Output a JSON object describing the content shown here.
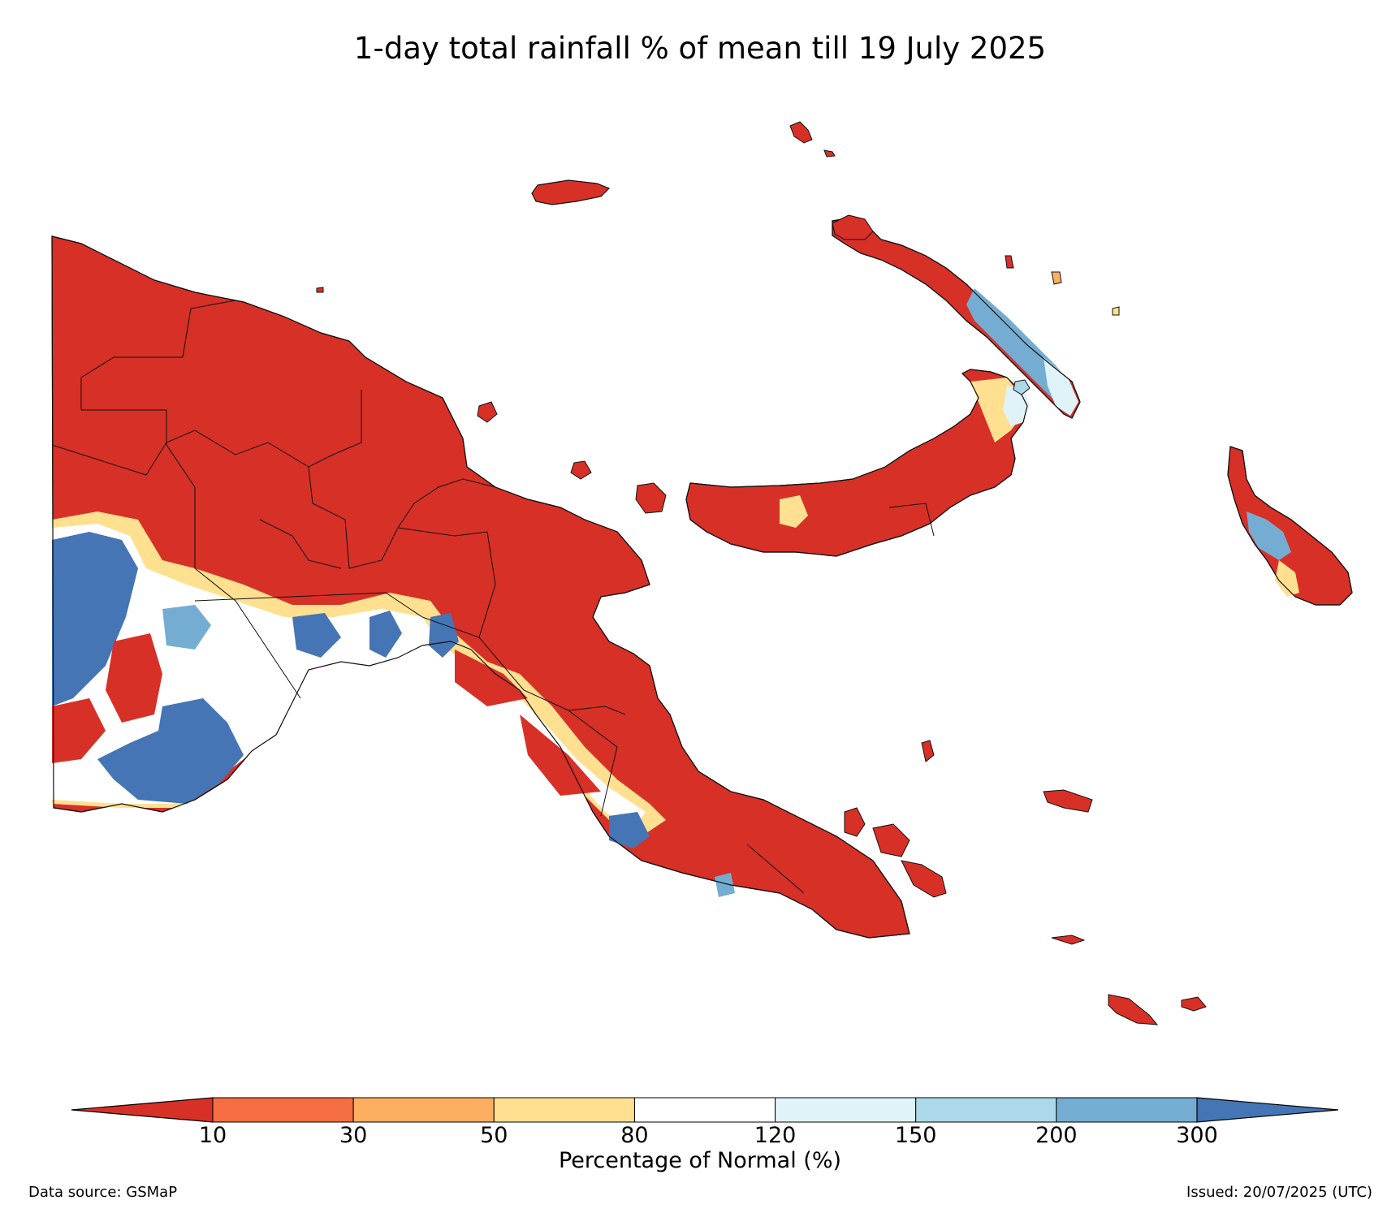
{
  "title": "1-day total rainfall % of mean till 19 July 2025",
  "colorbar": {
    "label": "Percentage of Normal (%)",
    "ticks": [
      "10",
      "30",
      "50",
      "80",
      "120",
      "150",
      "200",
      "300"
    ],
    "colors": [
      "#d73027",
      "#f46d43",
      "#fdae61",
      "#fee090",
      "#ffffff",
      "#e0f3f8",
      "#abd9e9",
      "#74add1",
      "#4575b4"
    ]
  },
  "footer": {
    "source": "Data source: GSMaP",
    "issued": "Issued: 20/07/2025 (UTC)"
  }
}
